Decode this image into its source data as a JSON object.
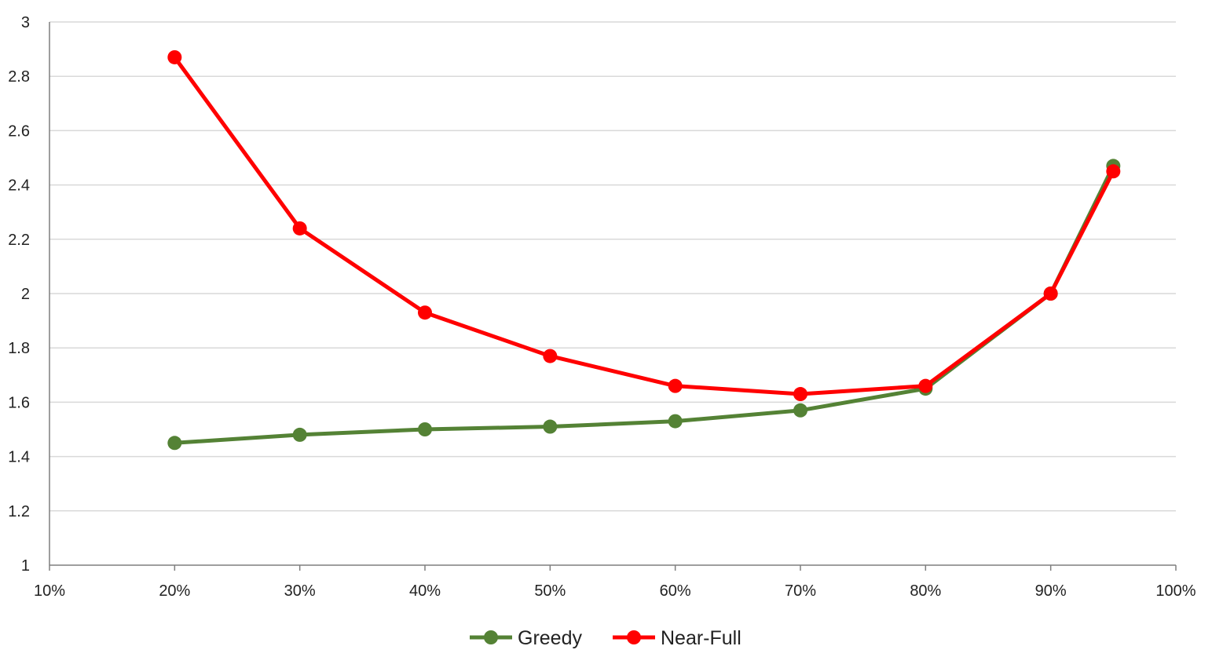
{
  "chart_data": {
    "type": "line",
    "title": "",
    "xlabel": "",
    "ylabel": "",
    "x_is_percent": true,
    "xlim": [
      0.1,
      1.0
    ],
    "ylim": [
      1,
      3
    ],
    "x_ticks": [
      0.1,
      0.2,
      0.3,
      0.4,
      0.5,
      0.6,
      0.7,
      0.8,
      0.9,
      1.0
    ],
    "x_tick_labels": [
      "10%",
      "20%",
      "30%",
      "40%",
      "50%",
      "60%",
      "70%",
      "80%",
      "90%",
      "100%"
    ],
    "y_ticks": [
      1,
      1.2,
      1.4,
      1.6,
      1.8,
      2,
      2.2,
      2.4,
      2.6,
      2.8,
      3
    ],
    "y_tick_labels": [
      "1",
      "1.2",
      "1.4",
      "1.6",
      "1.8",
      "2",
      "2.2",
      "2.4",
      "2.6",
      "2.8",
      "3"
    ],
    "grid": "horizontal",
    "legend_position": "bottom-center",
    "series": [
      {
        "name": "Greedy",
        "color": "#548235",
        "x": [
          0.2,
          0.3,
          0.4,
          0.5,
          0.6,
          0.7,
          0.8,
          0.9,
          0.95
        ],
        "y": [
          1.45,
          1.48,
          1.5,
          1.51,
          1.53,
          1.57,
          1.65,
          2.0,
          2.47
        ]
      },
      {
        "name": "Near-Full",
        "color": "#ff0000",
        "x": [
          0.2,
          0.3,
          0.4,
          0.5,
          0.6,
          0.7,
          0.8,
          0.9,
          0.95
        ],
        "y": [
          2.87,
          2.24,
          1.93,
          1.77,
          1.66,
          1.63,
          1.66,
          2.0,
          2.45
        ]
      }
    ]
  }
}
